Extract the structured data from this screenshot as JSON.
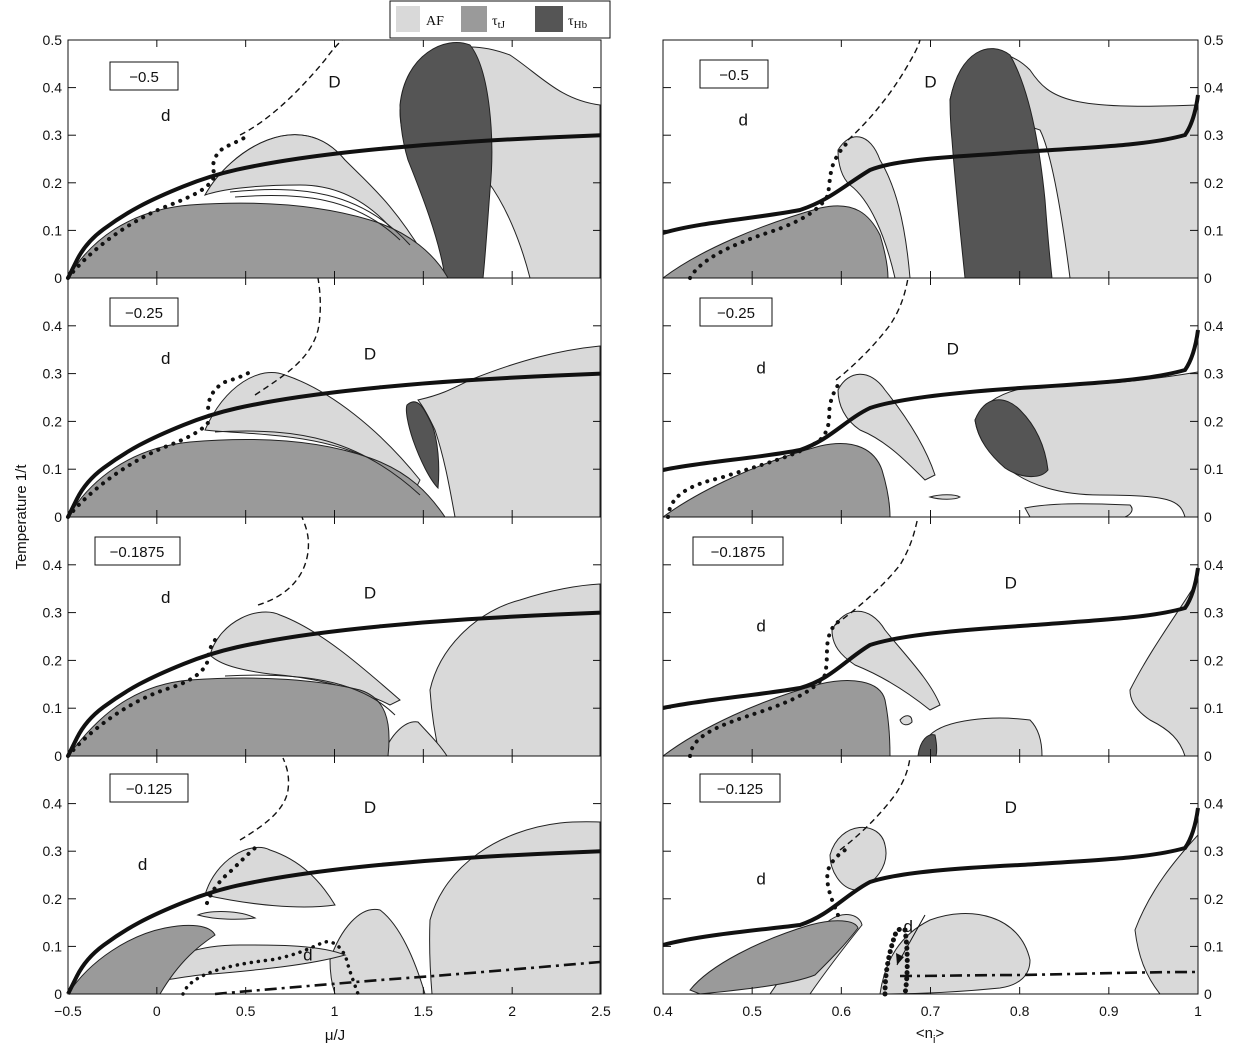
{
  "legend": {
    "entries": [
      {
        "label": "AF",
        "sub": "",
        "color": "#d9d9d9"
      },
      {
        "label": "τ",
        "sub": "tJ",
        "color": "#9a9a9a"
      },
      {
        "label": "τ",
        "sub": "Hb",
        "color": "#555555"
      }
    ]
  },
  "colors": {
    "af": "#d9d9d9",
    "tj": "#9a9a9a",
    "hb": "#555555"
  },
  "chart_data": [
    {
      "type": "area",
      "column": "left",
      "xlabel": "μ/J",
      "ylabel": "Temperature 1/t",
      "xlim": [
        -0.5,
        2.5
      ],
      "ylim": [
        0,
        0.5
      ],
      "xticks": [
        "-0.5",
        "0",
        "0.5",
        "1",
        "1.5",
        "2",
        "2.5"
      ],
      "yticks": [
        "0",
        "0.1",
        "0.2",
        "0.3",
        "0.4",
        "0.5"
      ],
      "panels": [
        {
          "label": "-0.5",
          "regions": [
            {
              "text": "d",
              "x": 0.05,
              "y": 0.33
            },
            {
              "text": "D",
              "x": 1.0,
              "y": 0.4
            }
          ],
          "thick_line": [
            [
              -0.5,
              0
            ],
            [
              -0.4,
              0.075
            ],
            [
              -0.2,
              0.13
            ],
            [
              0,
              0.17
            ],
            [
              0.3,
              0.215
            ],
            [
              0.6,
              0.24
            ],
            [
              1.0,
              0.262
            ],
            [
              1.5,
              0.28
            ],
            [
              2.0,
              0.292
            ],
            [
              2.5,
              0.3
            ]
          ]
        },
        {
          "label": "-0.25",
          "regions": [
            {
              "text": "d",
              "x": 0.05,
              "y": 0.32
            },
            {
              "text": "D",
              "x": 1.2,
              "y": 0.33
            }
          ],
          "thick_line": [
            [
              -0.5,
              0
            ],
            [
              -0.4,
              0.075
            ],
            [
              -0.2,
              0.13
            ],
            [
              0,
              0.17
            ],
            [
              0.3,
              0.215
            ],
            [
              0.6,
              0.24
            ],
            [
              1.0,
              0.262
            ],
            [
              1.5,
              0.28
            ],
            [
              2.0,
              0.292
            ],
            [
              2.5,
              0.3
            ]
          ]
        },
        {
          "label": "-0.1875",
          "regions": [
            {
              "text": "d",
              "x": 0.05,
              "y": 0.32
            },
            {
              "text": "D",
              "x": 1.2,
              "y": 0.33
            }
          ],
          "thick_line": [
            [
              -0.5,
              0
            ],
            [
              -0.4,
              0.075
            ],
            [
              -0.2,
              0.13
            ],
            [
              0,
              0.17
            ],
            [
              0.3,
              0.215
            ],
            [
              0.6,
              0.24
            ],
            [
              1.0,
              0.262
            ],
            [
              1.5,
              0.28
            ],
            [
              2.0,
              0.292
            ],
            [
              2.5,
              0.3
            ]
          ]
        },
        {
          "label": "-0.125",
          "regions": [
            {
              "text": "d",
              "x": -0.08,
              "y": 0.26
            },
            {
              "text": "D",
              "x": 1.2,
              "y": 0.38
            },
            {
              "text": "d",
              "x": 0.85,
              "y": 0.07
            }
          ],
          "thick_line": [
            [
              -0.5,
              0
            ],
            [
              -0.4,
              0.075
            ],
            [
              -0.2,
              0.13
            ],
            [
              0,
              0.17
            ],
            [
              0.3,
              0.215
            ],
            [
              0.6,
              0.24
            ],
            [
              1.0,
              0.262
            ],
            [
              1.5,
              0.28
            ],
            [
              2.0,
              0.292
            ],
            [
              2.5,
              0.3
            ]
          ]
        }
      ]
    },
    {
      "type": "area",
      "column": "right",
      "xlabel": "<n_i>",
      "xlim": [
        0.4,
        1.0
      ],
      "ylim": [
        0,
        0.5
      ],
      "xticks": [
        "0.4",
        "0.5",
        "0.6",
        "0.7",
        "0.8",
        "0.9",
        "1"
      ],
      "yticks": [
        "0",
        "0.1",
        "0.2",
        "0.3",
        "0.4",
        "0.5"
      ],
      "panels": [
        {
          "label": "-0.5",
          "regions": [
            {
              "text": "d",
              "x": 0.49,
              "y": 0.32
            },
            {
              "text": "D",
              "x": 0.7,
              "y": 0.4
            }
          ]
        },
        {
          "label": "-0.25",
          "regions": [
            {
              "text": "d",
              "x": 0.51,
              "y": 0.3
            },
            {
              "text": "D",
              "x": 0.725,
              "y": 0.34
            }
          ]
        },
        {
          "label": "-0.1875",
          "regions": [
            {
              "text": "d",
              "x": 0.51,
              "y": 0.26
            },
            {
              "text": "D",
              "x": 0.79,
              "y": 0.35
            }
          ]
        },
        {
          "label": "-0.125",
          "regions": [
            {
              "text": "d",
              "x": 0.51,
              "y": 0.23
            },
            {
              "text": "D",
              "x": 0.79,
              "y": 0.38
            },
            {
              "text": "d",
              "x": 0.675,
              "y": 0.13
            }
          ]
        }
      ]
    }
  ]
}
